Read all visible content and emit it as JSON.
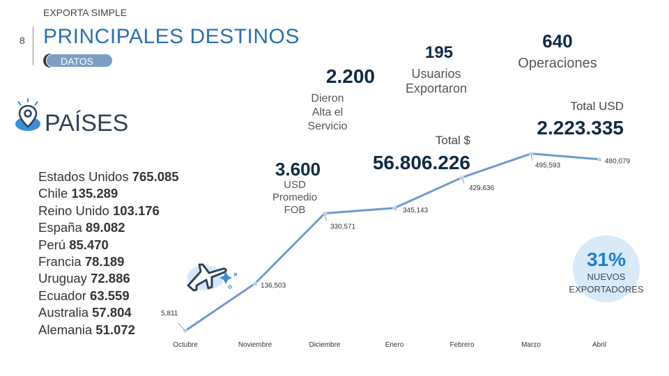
{
  "header": {
    "brand": "EXPORTA SIMPLE",
    "page_number": "8",
    "title": "PRINCIPALES DESTINOS",
    "badge": "DATOS"
  },
  "countries": {
    "heading": "PAÍSES",
    "items": [
      {
        "name": "Estados Unidos",
        "value": "765.085"
      },
      {
        "name": "Chile",
        "value": "135.289"
      },
      {
        "name": "Reino Unido",
        "value": "103.176"
      },
      {
        "name": "España",
        "value": "89.082"
      },
      {
        "name": "Perú",
        "value": "85.470"
      },
      {
        "name": "Francia",
        "value": "78.189"
      },
      {
        "name": "Uruguay",
        "value": "72.886"
      },
      {
        "name": "Ecuador",
        "value": "63.559"
      },
      {
        "name": "Australia",
        "value": "57.804"
      },
      {
        "name": "Alemania",
        "value": "51.072"
      }
    ]
  },
  "stats": {
    "alta": {
      "value": "2.200",
      "label_1": "Dieron",
      "label_2": "Alta el",
      "label_3": "Servicio"
    },
    "usuarios": {
      "value": "195",
      "label_1": "Usuarios",
      "label_2": "Exportaron"
    },
    "operaciones": {
      "value": "640",
      "label": "Operaciones"
    },
    "total_usd": {
      "label": "Total USD",
      "value": "2.223.335"
    },
    "total_pesos": {
      "label": "Total $",
      "value": "56.806.226"
    },
    "promedio": {
      "value": "3.600",
      "label_1": "USD",
      "label_2": "Promedio",
      "label_3": "FOB"
    }
  },
  "badge_pct": {
    "value": "31%",
    "line_1": "NUEVOS",
    "line_2": "EXPORTADORES"
  },
  "colors": {
    "accent": "#2c6fb2",
    "line": "#6b9bd1",
    "dark": "#0f2a44"
  },
  "chart_data": {
    "type": "line",
    "title": "",
    "categories": [
      "Octubre",
      "Noviembre",
      "Diciembre",
      "Enero",
      "Febrero",
      "Marzo",
      "Abril"
    ],
    "series": [
      {
        "name": "Operaciones",
        "values": [
          5.811,
          136.503,
          330.571,
          345.143,
          429.636,
          495.593,
          480.079
        ],
        "labels": [
          "5,811",
          "136,503",
          "330,571",
          "345,143",
          "429,636",
          "495,593",
          "480,079"
        ]
      }
    ],
    "ylim": [
      0,
      520
    ]
  }
}
